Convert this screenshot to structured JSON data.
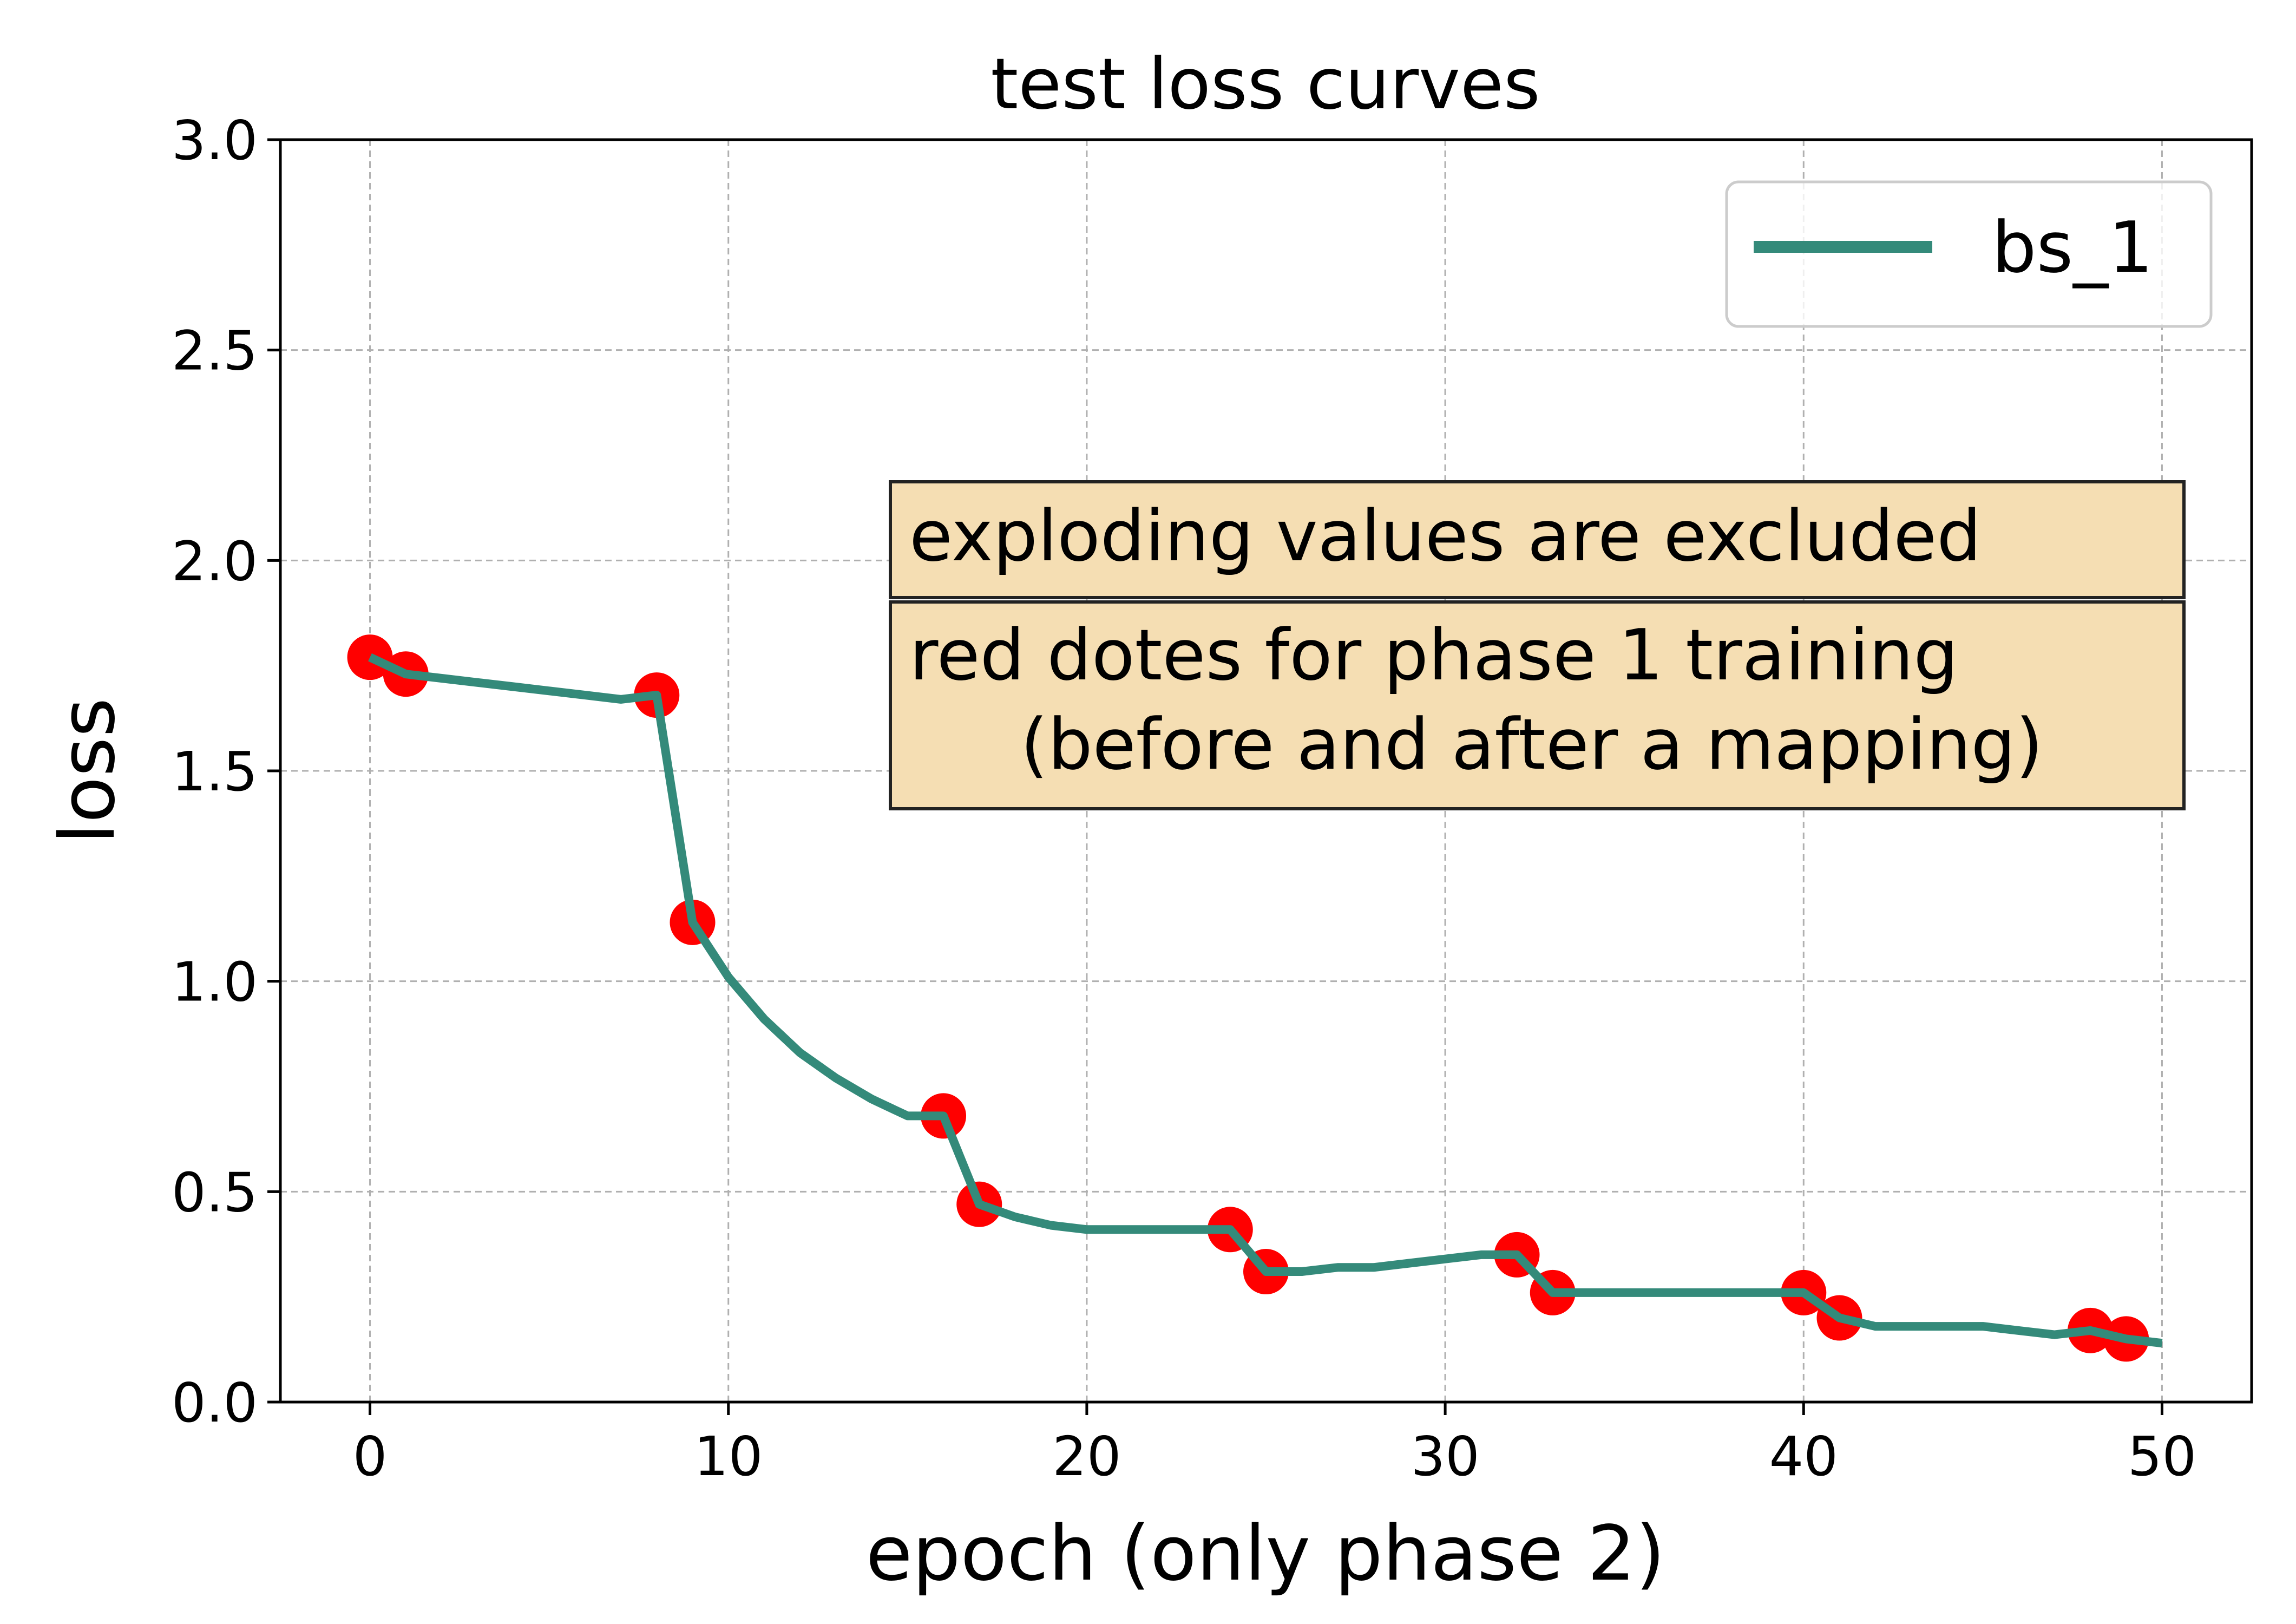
{
  "chart_data": {
    "type": "line",
    "title": "test loss curves",
    "xlabel": "epoch (only phase 2)",
    "ylabel": "loss",
    "xlim": [
      -2.5,
      52.5
    ],
    "ylim": [
      0,
      3.0
    ],
    "xticks": [
      0,
      10,
      20,
      30,
      40,
      50
    ],
    "xtick_labels": [
      "0",
      "10",
      "20",
      "30",
      "40",
      "50"
    ],
    "yticks": [
      0,
      0.5,
      1.0,
      1.5,
      2.0,
      2.5,
      3.0
    ],
    "ytick_labels": [
      "0.0",
      "0.5",
      "1.0",
      "1.5",
      "2.0",
      "2.5",
      "3.0"
    ],
    "grid": true,
    "legend_position": "top-right",
    "series": [
      {
        "name": "bs_1",
        "color": "#348a7a",
        "x": [
          0,
          1,
          2,
          3,
          4,
          5,
          6,
          7,
          8,
          9,
          10,
          11,
          12,
          13,
          14,
          15,
          16,
          17,
          18,
          19,
          20,
          21,
          22,
          23,
          24,
          25,
          26,
          27,
          28,
          29,
          30,
          31,
          32,
          33,
          34,
          35,
          36,
          37,
          38,
          39,
          40,
          41,
          42,
          43,
          44,
          45,
          46,
          47,
          48,
          49,
          50
        ],
        "y": [
          1.77,
          1.73,
          1.72,
          1.71,
          1.7,
          1.69,
          1.68,
          1.67,
          1.68,
          1.14,
          1.01,
          0.91,
          0.83,
          0.77,
          0.72,
          0.68,
          0.68,
          0.47,
          0.44,
          0.42,
          0.41,
          0.41,
          0.41,
          0.41,
          0.41,
          0.31,
          0.31,
          0.32,
          0.32,
          0.33,
          0.34,
          0.35,
          0.35,
          0.26,
          0.26,
          0.26,
          0.26,
          0.26,
          0.26,
          0.26,
          0.26,
          0.2,
          0.18,
          0.18,
          0.18,
          0.18,
          0.17,
          0.16,
          0.17,
          0.15,
          0.14
        ]
      }
    ],
    "markers": {
      "color": "#ff0000",
      "x": [
        0,
        1,
        8,
        9,
        16,
        17,
        24,
        25,
        32,
        33,
        40,
        41,
        48,
        49
      ],
      "y": [
        1.77,
        1.73,
        1.68,
        1.14,
        0.68,
        0.47,
        0.41,
        0.31,
        0.35,
        0.26,
        0.26,
        0.2,
        0.17,
        0.15
      ]
    },
    "annotations": [
      {
        "lines": [
          "exploding values are excluded"
        ],
        "background": "#f5deb3"
      },
      {
        "lines": [
          "red dotes for phase 1 training",
          "(before and after a mapping)"
        ],
        "background": "#f5deb3"
      }
    ]
  }
}
